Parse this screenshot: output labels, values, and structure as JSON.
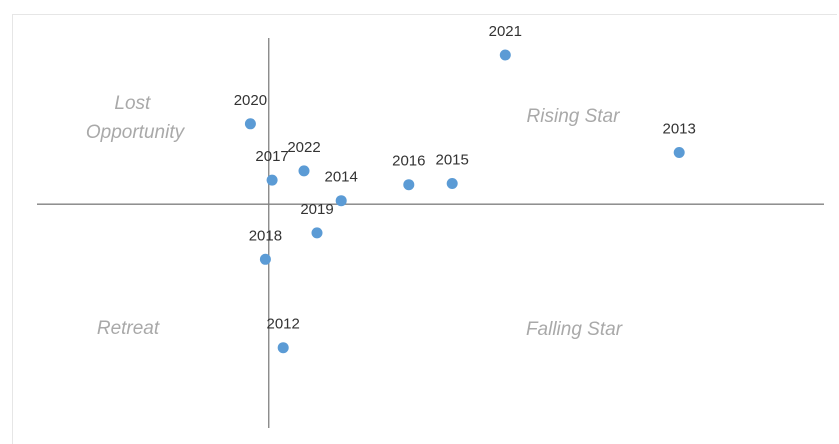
{
  "chart_data": {
    "type": "scatter",
    "title": "",
    "xlabel": "",
    "ylabel": "",
    "xlim": [
      -4.8,
      11.5
    ],
    "ylim": [
      -3.9,
      3.0
    ],
    "grid": false,
    "legend": "none",
    "point_color": "#5b9bd5",
    "axis_color": "#808080",
    "quadrant_labels": [
      {
        "id": "lost-opportunity",
        "lines": [
          "Lost",
          "Opportunity"
        ]
      },
      {
        "id": "rising-star",
        "lines": [
          "Rising Star"
        ]
      },
      {
        "id": "retreat",
        "lines": [
          "Retreat"
        ]
      },
      {
        "id": "falling-star",
        "lines": [
          "Falling Star"
        ]
      }
    ],
    "points": [
      {
        "label": "2012",
        "x": 0.3,
        "y": -2.5
      },
      {
        "label": "2013",
        "x": 8.5,
        "y": 0.9
      },
      {
        "label": "2014",
        "x": 1.5,
        "y": 0.06
      },
      {
        "label": "2015",
        "x": 3.8,
        "y": 0.36
      },
      {
        "label": "2016",
        "x": 2.9,
        "y": 0.34
      },
      {
        "label": "2017",
        "x": 0.07,
        "y": 0.42
      },
      {
        "label": "2018",
        "x": -0.07,
        "y": -0.96
      },
      {
        "label": "2019",
        "x": 1.0,
        "y": -0.5
      },
      {
        "label": "2020",
        "x": -0.38,
        "y": 1.4
      },
      {
        "label": "2021",
        "x": 4.9,
        "y": 2.6
      },
      {
        "label": "2022",
        "x": 0.73,
        "y": 0.58
      }
    ]
  }
}
